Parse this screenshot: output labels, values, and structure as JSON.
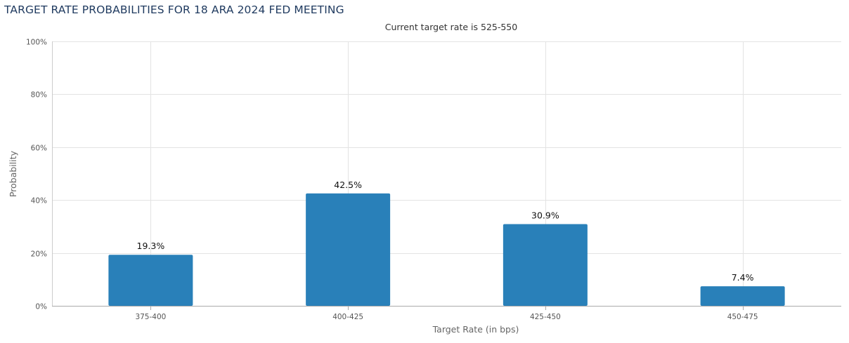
{
  "page": {
    "title": "TARGET RATE PROBABILITIES FOR 18 ARA 2024 FED MEETING"
  },
  "chart_data": {
    "type": "bar",
    "subtitle": "Current target rate is 525-550",
    "xlabel": "Target Rate (in bps)",
    "ylabel": "Probability",
    "categories": [
      "375-400",
      "400-425",
      "425-450",
      "450-475"
    ],
    "values": [
      19.3,
      42.5,
      30.9,
      7.4
    ],
    "data_labels": [
      "19.3%",
      "42.5%",
      "30.9%",
      "7.4%"
    ],
    "ylim": [
      0,
      100
    ],
    "y_ticks": [
      0,
      20,
      40,
      60,
      80,
      100
    ],
    "y_tick_labels": [
      "0%",
      "20%",
      "40%",
      "60%",
      "80%",
      "100%"
    ],
    "grid": true,
    "bar_color": "#2980b9"
  }
}
